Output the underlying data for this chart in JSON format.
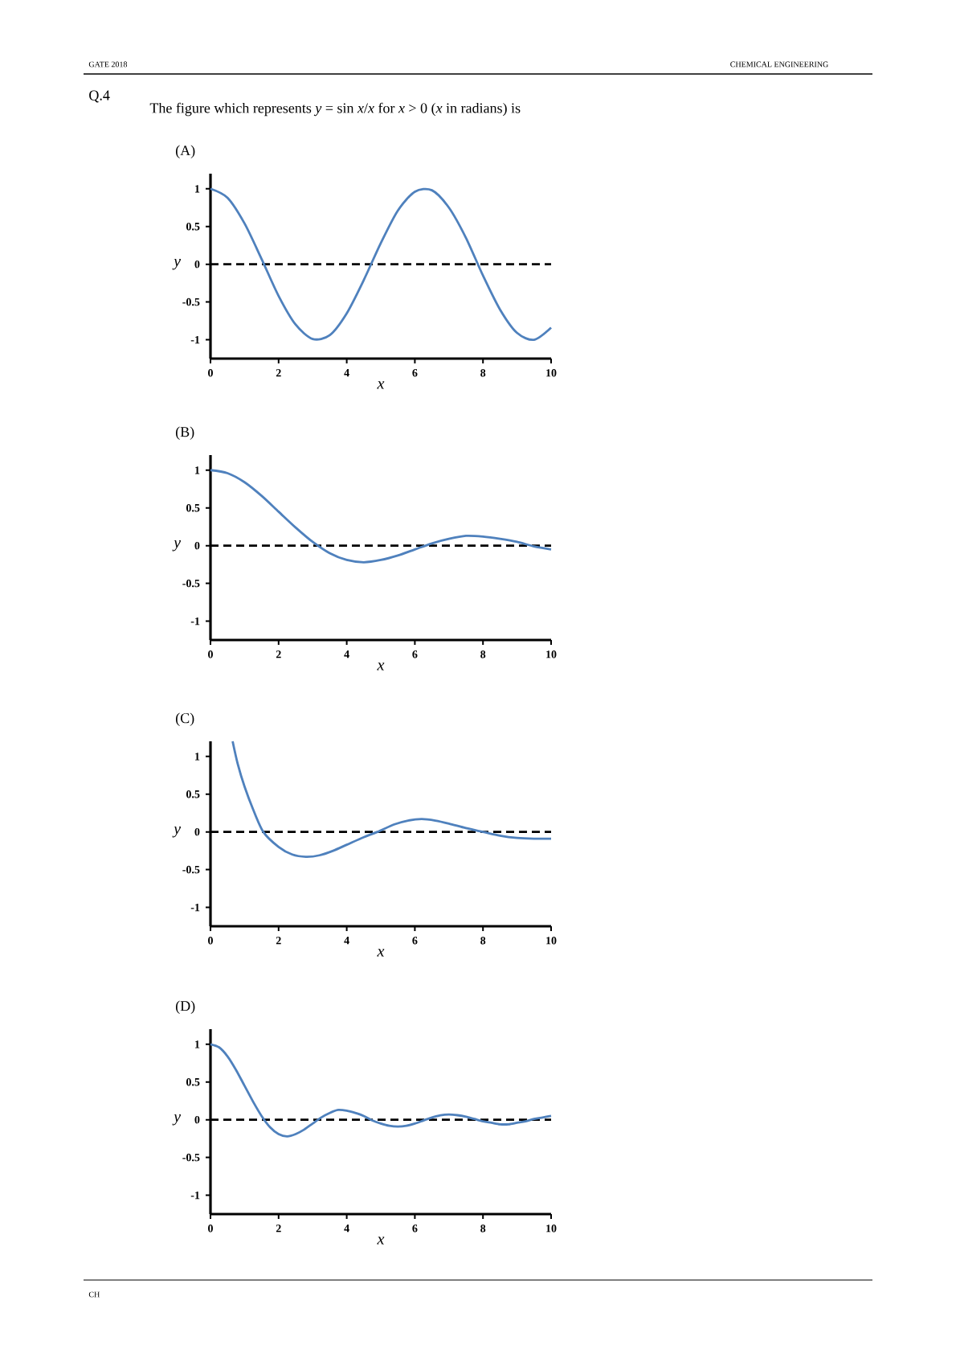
{
  "chart_data": [
    {
      "type": "line",
      "title": "(A)",
      "xlabel": "x",
      "ylabel": "y",
      "color": "#4f81bd",
      "line_style": "solid",
      "annotations": [
        "GATE 2018",
        "CHEMICAL ENGINEERING",
        "Q.4",
        "The figure which represents *y* = sin *x*/*x* for *x* > 0 (*x* in radians) is",
        "CH"
      ],
      "x": [
        0,
        0.5,
        1,
        1.5,
        2,
        2.5,
        3,
        3.5,
        4,
        4.5,
        5,
        5.5,
        6,
        6.5,
        7,
        7.5,
        8,
        8.5,
        9,
        9.5,
        10
      ],
      "values": [
        1,
        0.88,
        0.54,
        0.07,
        -0.42,
        -0.8,
        -0.99,
        -0.94,
        -0.65,
        -0.21,
        0.28,
        0.71,
        0.96,
        0.98,
        0.75,
        0.35,
        -0.15,
        -0.6,
        -0.91,
        -1.0,
        -0.84
      ],
      "xlim": [
        0,
        10
      ],
      "ylim": [
        -1.25,
        1.2
      ],
      "xticks": [
        0,
        2,
        4,
        6,
        8,
        10
      ],
      "yticks": [
        -1,
        -0.5,
        0,
        0.5,
        1
      ],
      "ref_lines": [
        {
          "axis": "y",
          "value": 0,
          "color": "#000000",
          "line_style": "dashed"
        }
      ]
    },
    {
      "type": "line",
      "title": "(B)",
      "xlabel": "x",
      "ylabel": "y",
      "color": "#4f81bd",
      "line_style": "solid",
      "x": [
        0,
        0.5,
        1,
        1.5,
        2,
        2.5,
        3,
        3.5,
        4,
        4.5,
        5,
        5.5,
        6,
        6.5,
        7,
        7.5,
        8,
        8.5,
        9,
        9.5,
        10
      ],
      "values": [
        1,
        0.96,
        0.84,
        0.66,
        0.45,
        0.24,
        0.05,
        -0.1,
        -0.19,
        -0.22,
        -0.19,
        -0.13,
        -0.05,
        0.03,
        0.09,
        0.13,
        0.12,
        0.09,
        0.05,
        -0.01,
        -0.05
      ],
      "xlim": [
        0,
        10
      ],
      "ylim": [
        -1.25,
        1.2
      ],
      "xticks": [
        0,
        2,
        4,
        6,
        8,
        10
      ],
      "yticks": [
        -1,
        -0.5,
        0,
        0.5,
        1
      ],
      "ref_lines": [
        {
          "axis": "y",
          "value": 0,
          "color": "#000000",
          "line_style": "dashed"
        }
      ]
    },
    {
      "type": "line",
      "title": "(C)",
      "xlabel": "x",
      "ylabel": "y",
      "color": "#4f81bd",
      "line_style": "solid",
      "x": [
        0.65,
        0.8,
        1,
        1.25,
        1.55,
        2,
        2.4,
        2.8,
        3.2,
        3.6,
        4,
        4.5,
        4.9,
        5.4,
        5.8,
        6.2,
        6.6,
        7,
        7.5,
        8,
        8.5,
        9,
        9.5,
        10
      ],
      "values": [
        1.2,
        0.9,
        0.6,
        0.3,
        0,
        -0.2,
        -0.3,
        -0.33,
        -0.31,
        -0.25,
        -0.17,
        -0.07,
        0,
        0.1,
        0.15,
        0.17,
        0.15,
        0.11,
        0.05,
        0,
        -0.05,
        -0.08,
        -0.09,
        -0.09
      ],
      "xlim": [
        0,
        10
      ],
      "ylim": [
        -1.25,
        1.2
      ],
      "xticks": [
        0,
        2,
        4,
        6,
        8,
        10
      ],
      "yticks": [
        -1,
        -0.5,
        0,
        0.5,
        1
      ],
      "ref_lines": [
        {
          "axis": "y",
          "value": 0,
          "color": "#000000",
          "line_style": "dashed"
        }
      ]
    },
    {
      "type": "line",
      "title": "(D)",
      "xlabel": "x",
      "ylabel": "y",
      "color": "#4f81bd",
      "line_style": "solid",
      "x": [
        0,
        0.25,
        0.5,
        0.75,
        1,
        1.25,
        1.5,
        1.75,
        2,
        2.25,
        2.5,
        2.75,
        3,
        3.25,
        3.5,
        3.75,
        4,
        4.25,
        4.5,
        4.75,
        5,
        5.25,
        5.5,
        5.75,
        6,
        6.25,
        6.5,
        6.75,
        7,
        7.25,
        7.5,
        7.75,
        8,
        8.25,
        8.5,
        8.75,
        9,
        9.25,
        9.5,
        9.75,
        10
      ],
      "values": [
        1,
        0.96,
        0.84,
        0.66,
        0.45,
        0.24,
        0.05,
        -0.1,
        -0.19,
        -0.22,
        -0.19,
        -0.13,
        -0.05,
        0.03,
        0.09,
        0.13,
        0.12,
        0.09,
        0.05,
        -0.01,
        -0.05,
        -0.08,
        -0.09,
        -0.08,
        -0.05,
        -0.01,
        0.03,
        0.06,
        0.07,
        0.06,
        0.04,
        0.01,
        -0.02,
        -0.04,
        -0.06,
        -0.06,
        -0.04,
        -0.02,
        0.01,
        0.03,
        0.05
      ],
      "xlim": [
        0,
        10
      ],
      "ylim": [
        -1.25,
        1.2
      ],
      "xticks": [
        0,
        2,
        4,
        6,
        8,
        10
      ],
      "yticks": [
        -1,
        -0.5,
        0,
        0.5,
        1
      ],
      "ref_lines": [
        {
          "axis": "y",
          "value": 0,
          "color": "#000000",
          "line_style": "dashed"
        }
      ]
    }
  ]
}
